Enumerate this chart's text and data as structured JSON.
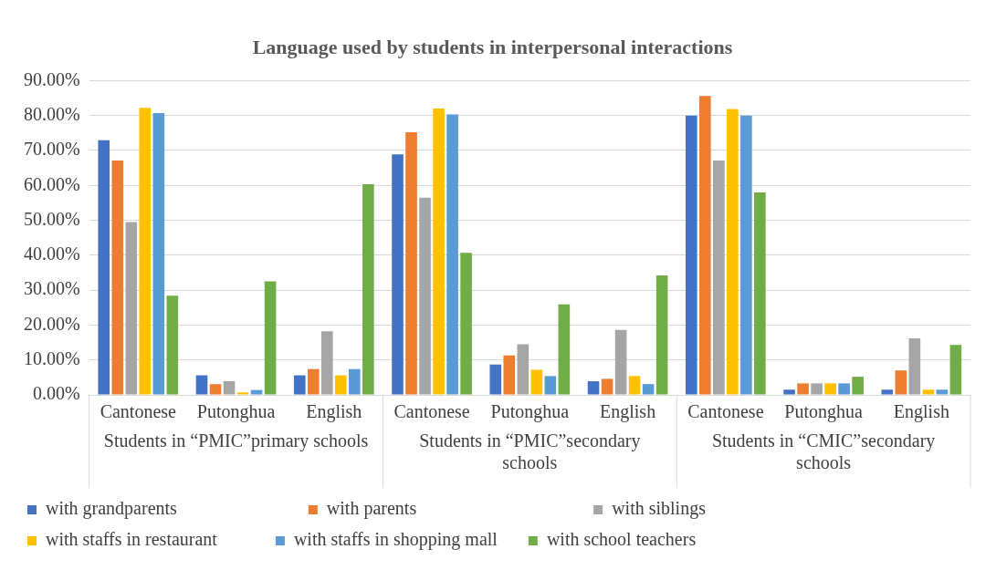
{
  "chart_data": {
    "type": "bar",
    "title": "Language used by students in interpersonal interactions",
    "categories": [
      "Cantonese",
      "Putonghua",
      "English",
      "Cantonese",
      "Putonghua",
      "English",
      "Cantonese",
      "Putonghua",
      "English"
    ],
    "series": [
      {
        "name": "with grandparents",
        "color": "#4472c4",
        "values": [
          72.9,
          5.6,
          5.6,
          68.9,
          8.7,
          3.9,
          80.0,
          1.5,
          1.5
        ]
      },
      {
        "name": "with parents",
        "color": "#ed7d31",
        "values": [
          67.1,
          3.1,
          7.4,
          75.2,
          11.3,
          4.6,
          85.6,
          3.3,
          7.0
        ]
      },
      {
        "name": "with siblings",
        "color": "#a5a5a5",
        "values": [
          49.5,
          3.9,
          18.2,
          56.5,
          14.5,
          18.6,
          67.1,
          3.3,
          16.2
        ]
      },
      {
        "name": "with staffs in restaurant",
        "color": "#ffc000",
        "values": [
          82.2,
          0.7,
          5.6,
          82.0,
          7.2,
          5.4,
          81.9,
          3.3,
          1.5
        ]
      },
      {
        "name": "with staffs in shopping mall",
        "color": "#5b9bd5",
        "values": [
          80.7,
          1.4,
          7.4,
          80.3,
          5.4,
          3.1,
          80.0,
          3.3,
          1.5
        ]
      },
      {
        "name": "with school teachers",
        "color": "#70ad47",
        "values": [
          28.4,
          32.5,
          60.3,
          40.7,
          25.9,
          34.2,
          58.0,
          5.2,
          14.3
        ]
      }
    ],
    "annotations": [
      "Students in “PMIC”primary schools",
      "Students in “PMIC”secondary schools",
      "Students in “CMIC”secondary schools"
    ],
    "ylim": [
      0,
      90
    ],
    "yticks": [
      {
        "value": 0,
        "label": "0.00%"
      },
      {
        "value": 10,
        "label": "10.00%"
      },
      {
        "value": 20,
        "label": "20.00%"
      },
      {
        "value": 30,
        "label": "30.00%"
      },
      {
        "value": 40,
        "label": "40.00%"
      },
      {
        "value": 50,
        "label": "50.00%"
      },
      {
        "value": 60,
        "label": "60.00%"
      },
      {
        "value": 70,
        "label": "70.00%"
      },
      {
        "value": 80,
        "label": "80.00%"
      },
      {
        "value": 90,
        "label": "90.00%"
      }
    ],
    "grid": "y",
    "legend": "bottom"
  }
}
